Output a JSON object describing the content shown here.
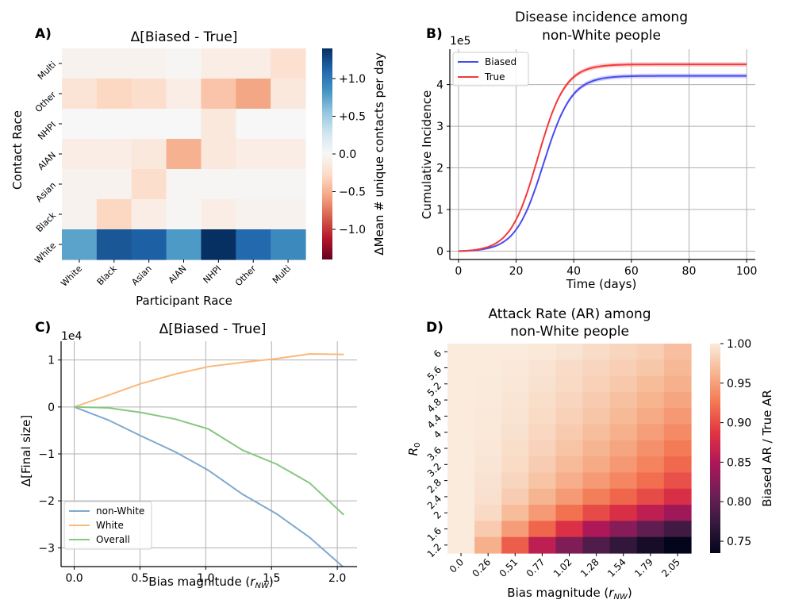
{
  "chart_data": [
    {
      "panel_label": "A)",
      "type": "heatmap",
      "title": "Δ[Biased - True]",
      "xlabel": "Participant Race",
      "ylabel": "Contact Race",
      "x_categories": [
        "White",
        "Black",
        "Asian",
        "AIAN",
        "NHPI",
        "Other",
        "Multi"
      ],
      "y_categories": [
        "Multi",
        "Other",
        "NHPI",
        "AIAN",
        "Asian",
        "Black",
        "White"
      ],
      "values": [
        [
          -0.05,
          -0.05,
          -0.05,
          -0.02,
          -0.1,
          -0.1,
          -0.22
        ],
        [
          -0.2,
          -0.3,
          -0.25,
          -0.1,
          -0.4,
          -0.55,
          -0.15
        ],
        [
          0.0,
          0.0,
          0.0,
          0.0,
          -0.15,
          0.0,
          0.0
        ],
        [
          -0.1,
          -0.1,
          -0.15,
          -0.5,
          -0.15,
          -0.1,
          -0.1
        ],
        [
          -0.05,
          -0.05,
          -0.25,
          -0.02,
          -0.02,
          -0.02,
          -0.02
        ],
        [
          -0.05,
          -0.3,
          -0.1,
          -0.02,
          -0.1,
          -0.05,
          -0.05
        ],
        [
          0.75,
          1.2,
          1.15,
          0.8,
          1.4,
          1.1,
          0.9
        ]
      ],
      "colorbar": {
        "label": "ΔMean # unique contacts per day",
        "vmin": -1.4,
        "vmax": 1.4,
        "ticks": [
          1.0,
          0.5,
          0.0,
          -0.5,
          -1.0
        ],
        "tick_labels": [
          "+1.0",
          "+0.5",
          "0.0",
          "−0.5",
          "−1.0"
        ],
        "colors": [
          "#67001f",
          "#b2182b",
          "#d6604d",
          "#f4a582",
          "#fddbc7",
          "#f7f7f7",
          "#d1e5f0",
          "#92c5de",
          "#4393c3",
          "#2166ac",
          "#053061"
        ]
      }
    },
    {
      "panel_label": "B)",
      "type": "line",
      "title": "Disease incidence among non-White people",
      "title_lines": [
        "Disease incidence among",
        "non-White people"
      ],
      "xlabel": "Time (days)",
      "ylabel": "Cumulative Incidence",
      "scale_label": "1e5",
      "xlim": [
        -3,
        103
      ],
      "ylim": [
        -0.2,
        4.85
      ],
      "xticks": [
        0,
        20,
        40,
        60,
        80,
        100
      ],
      "yticks": [
        0,
        1,
        2,
        3,
        4
      ],
      "grid": true,
      "legend": "top-left",
      "series": [
        {
          "name": "Biased",
          "color": "#4a4af2",
          "final": 4.22,
          "midpoint": 29.5,
          "rate": 0.205
        },
        {
          "name": "True",
          "color": "#f23a3a",
          "final": 4.5,
          "midpoint": 27.5,
          "rate": 0.21
        }
      ]
    },
    {
      "panel_label": "C)",
      "type": "line",
      "title": "Δ[Biased - True]",
      "xlabel": "Bias magnitude (r_NW)",
      "xlabel_main": "Bias magnitude (",
      "xlabel_var": "r",
      "xlabel_sub": "NW",
      "xlabel_end": ")",
      "ylabel": "Δ[Final size]",
      "scale_label": "1e4",
      "xlim": [
        -0.1,
        2.15
      ],
      "ylim": [
        -3.4,
        1.4
      ],
      "xticks": [
        0.0,
        0.5,
        1.0,
        1.5,
        2.0
      ],
      "xtick_labels": [
        "0.0",
        "0.5",
        "1.0",
        "1.5",
        "2.0"
      ],
      "yticks": [
        1,
        0,
        -1,
        -2,
        -3
      ],
      "ytick_labels": [
        "1",
        "0",
        "−1",
        "−2",
        "−3"
      ],
      "grid": true,
      "legend": "bottom-left",
      "x": [
        0.0,
        0.26,
        0.51,
        0.77,
        1.02,
        1.28,
        1.54,
        1.79,
        2.05
      ],
      "series": [
        {
          "name": "non-White",
          "color": "#7ea8cf",
          "values": [
            0.0,
            -0.28,
            -0.62,
            -0.96,
            -1.35,
            -1.86,
            -2.28,
            -2.78,
            -3.42
          ]
        },
        {
          "name": "White",
          "color": "#fbb97c",
          "values": [
            0.0,
            0.25,
            0.5,
            0.7,
            0.86,
            0.95,
            1.03,
            1.13,
            1.12
          ]
        },
        {
          "name": "Overall",
          "color": "#86c880",
          "values": [
            0.0,
            -0.02,
            -0.12,
            -0.26,
            -0.47,
            -0.92,
            -1.22,
            -1.62,
            -2.3
          ]
        }
      ]
    },
    {
      "panel_label": "D)",
      "type": "heatmap",
      "title": "Attack Rate (AR) among non-White people",
      "title_lines": [
        "Attack Rate (AR) among",
        "non-White people"
      ],
      "xlabel": "Bias magnitude (r_NW)",
      "xlabel_main": "Bias magnitude (",
      "xlabel_var": "r",
      "xlabel_sub": "NW",
      "xlabel_end": ")",
      "ylabel": "R0",
      "ylabel_main": "R",
      "ylabel_sub": "0",
      "x_categories": [
        "0.0",
        "0.26",
        "0.51",
        "0.77",
        "1.02",
        "1.28",
        "1.54",
        "1.79",
        "2.05"
      ],
      "y_categories": [
        "6",
        "5.6",
        "5.2",
        "4.8",
        "4.4",
        "4",
        "3.6",
        "3.2",
        "2.8",
        "2.4",
        "2",
        "1.6",
        "1.2"
      ],
      "values": [
        [
          1.0,
          1.0,
          1.0,
          0.998,
          0.995,
          0.99,
          0.985,
          0.98,
          0.97
        ],
        [
          1.0,
          1.0,
          0.998,
          0.995,
          0.99,
          0.985,
          0.98,
          0.975,
          0.965
        ],
        [
          1.0,
          0.999,
          0.997,
          0.993,
          0.988,
          0.982,
          0.976,
          0.968,
          0.96
        ],
        [
          1.0,
          0.999,
          0.996,
          0.991,
          0.985,
          0.978,
          0.971,
          0.962,
          0.953
        ],
        [
          1.0,
          0.998,
          0.995,
          0.989,
          0.982,
          0.974,
          0.966,
          0.956,
          0.945
        ],
        [
          1.0,
          0.998,
          0.993,
          0.986,
          0.978,
          0.969,
          0.96,
          0.949,
          0.937
        ],
        [
          1.0,
          0.997,
          0.991,
          0.983,
          0.973,
          0.963,
          0.953,
          0.941,
          0.928
        ],
        [
          1.0,
          0.996,
          0.989,
          0.979,
          0.967,
          0.956,
          0.945,
          0.932,
          0.917
        ],
        [
          1.0,
          0.994,
          0.985,
          0.973,
          0.959,
          0.946,
          0.934,
          0.92,
          0.903
        ],
        [
          1.0,
          0.992,
          0.979,
          0.963,
          0.946,
          0.93,
          0.915,
          0.9,
          0.88
        ],
        [
          1.0,
          0.988,
          0.968,
          0.946,
          0.922,
          0.9,
          0.88,
          0.86,
          0.84
        ],
        [
          1.0,
          0.978,
          0.948,
          0.915,
          0.882,
          0.85,
          0.825,
          0.8,
          0.78
        ],
        [
          1.0,
          0.96,
          0.91,
          0.86,
          0.82,
          0.79,
          0.77,
          0.75,
          0.735
        ]
      ],
      "colorbar": {
        "label": "Biased AR / True AR",
        "vmin": 0.735,
        "vmax": 1.0,
        "ticks": [
          1.0,
          0.95,
          0.9,
          0.85,
          0.8,
          0.75
        ],
        "tick_labels": [
          "1.00",
          "0.95",
          "0.90",
          "0.85",
          "0.80",
          "0.75"
        ],
        "colors": [
          "#03051a",
          "#35193e",
          "#701f57",
          "#ad1759",
          "#e13342",
          "#f37651",
          "#f6b48f",
          "#faebdd"
        ]
      }
    }
  ]
}
